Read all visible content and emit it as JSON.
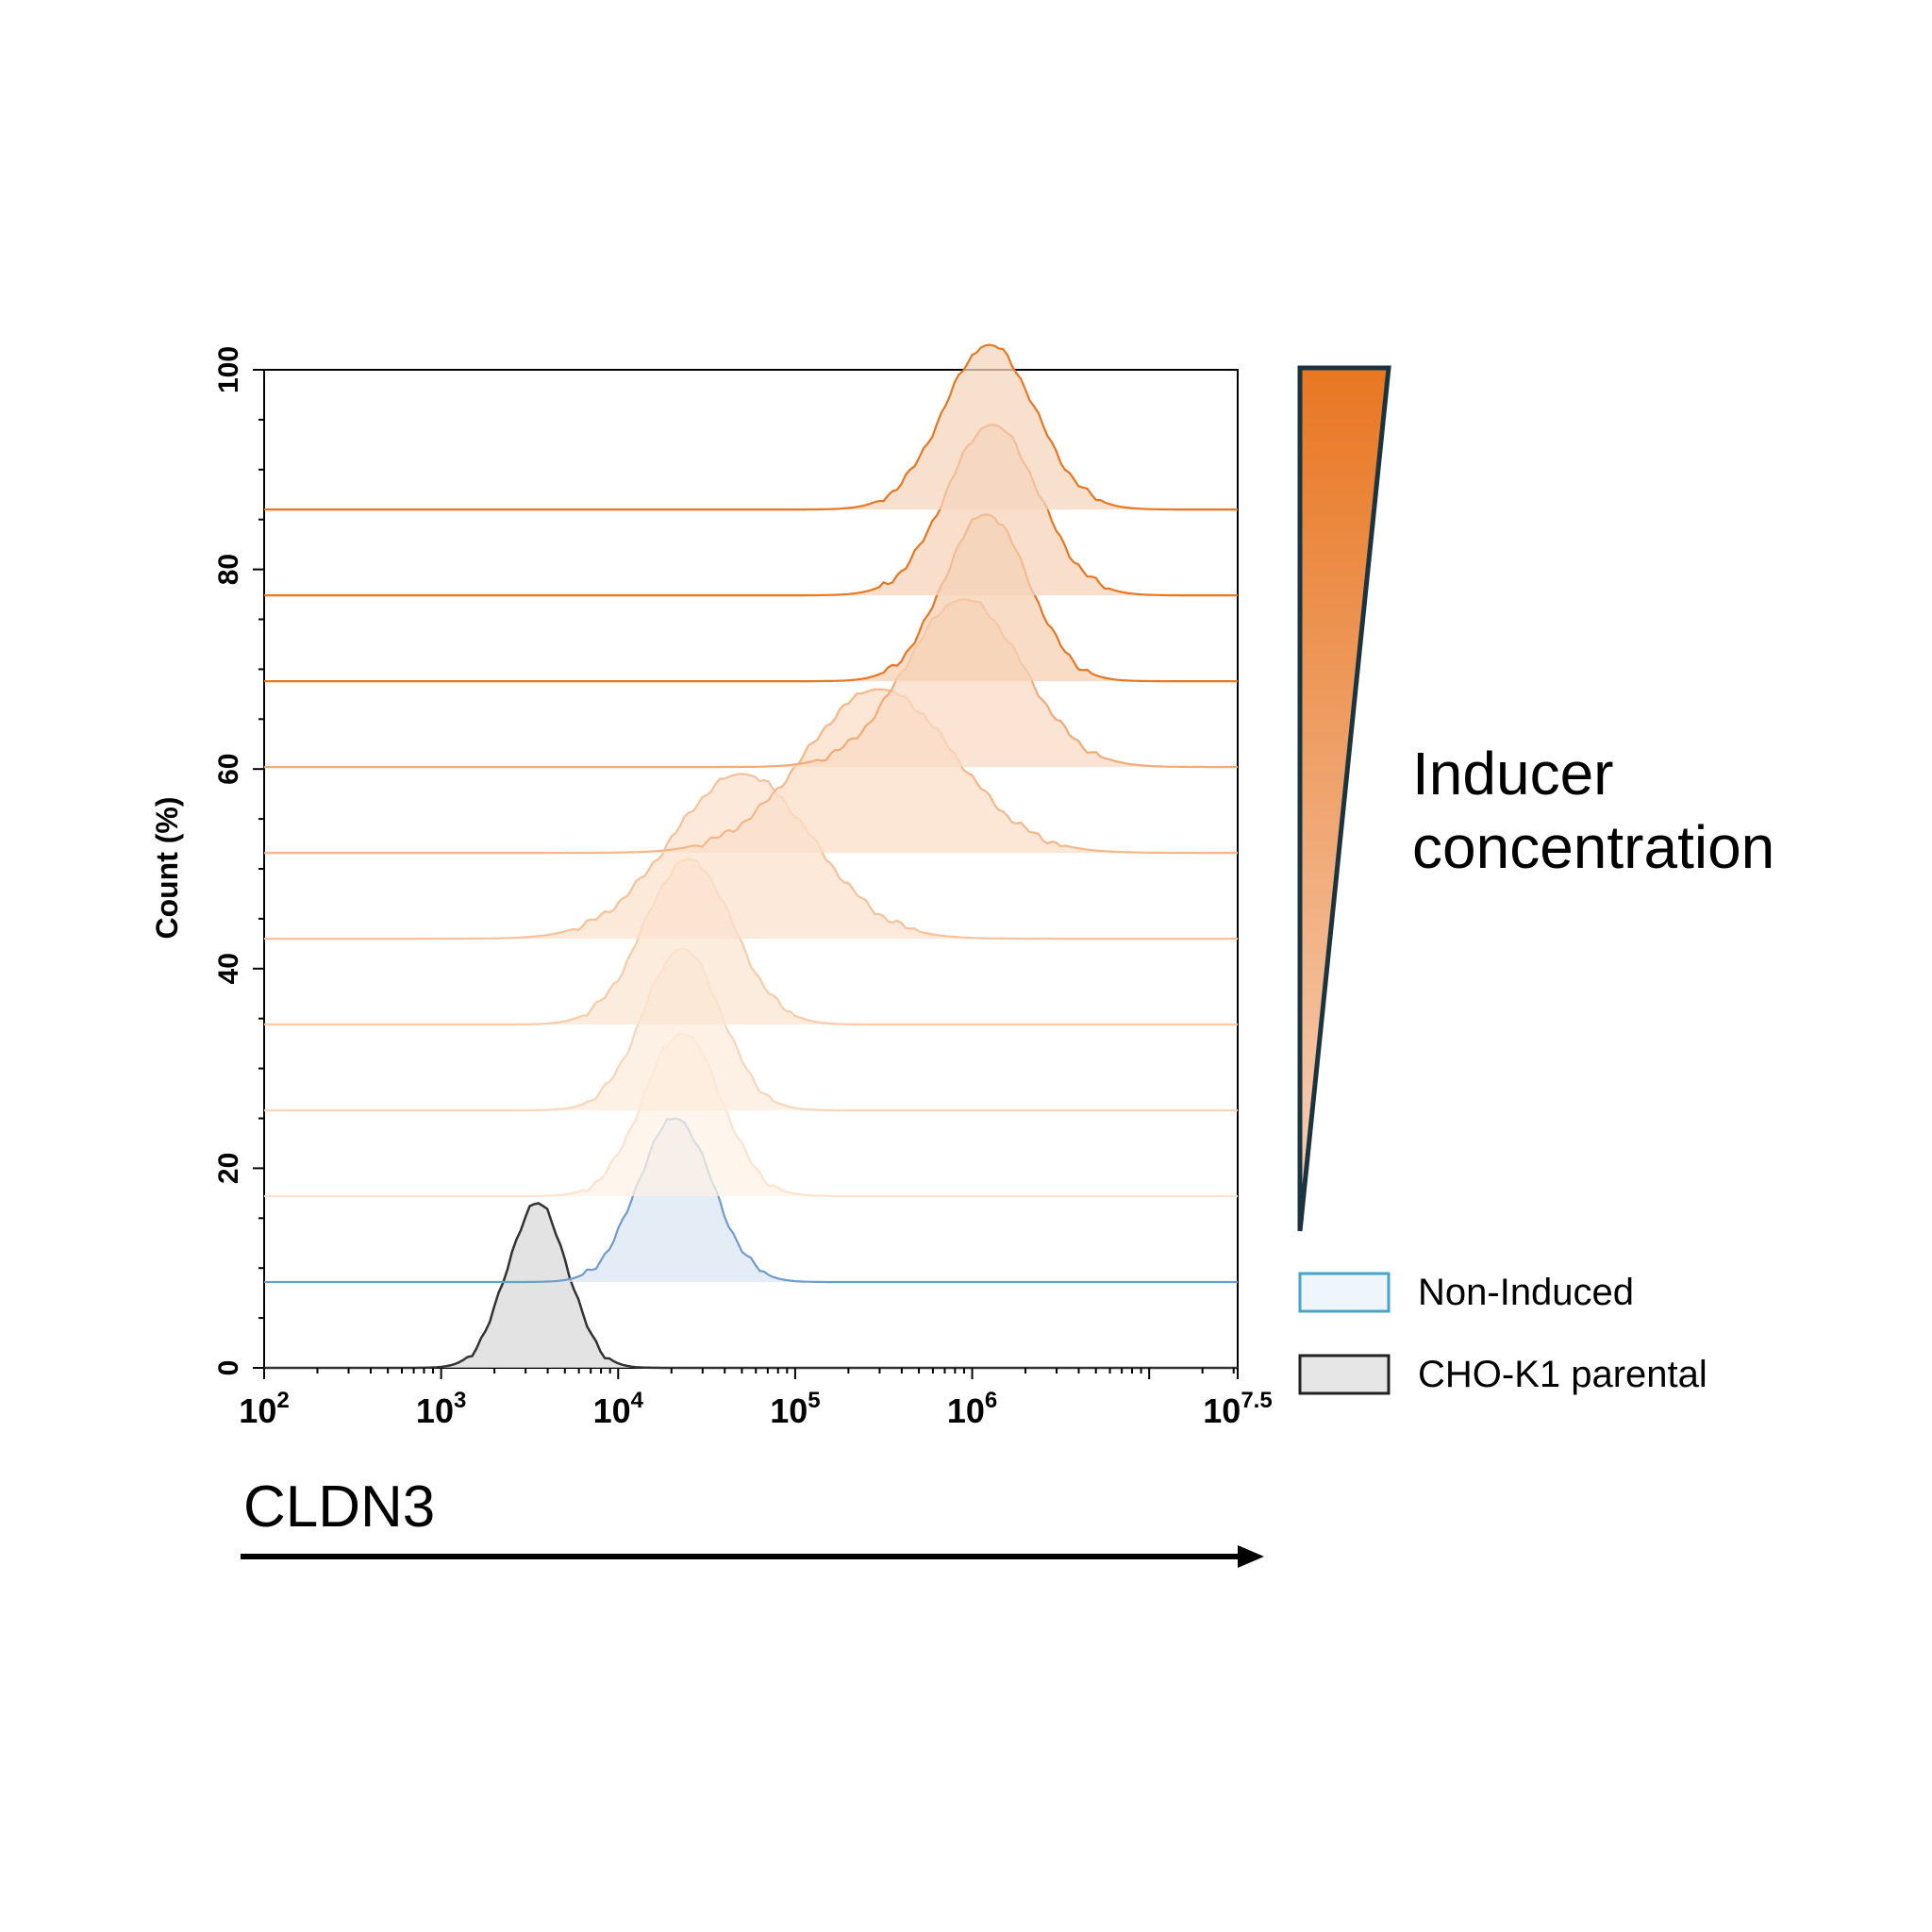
{
  "chart_data": {
    "type": "area",
    "subtype": "offset histogram overlay (flow cytometry)",
    "xlabel": "CLDN3",
    "ylabel": "Count (%)",
    "x_scale": "log10",
    "xlim": [
      100,
      31622777
    ],
    "ylim": [
      0,
      100
    ],
    "x_ticks": [
      {
        "base": "10",
        "exp": "2"
      },
      {
        "base": "10",
        "exp": "3"
      },
      {
        "base": "10",
        "exp": "4"
      },
      {
        "base": "10",
        "exp": "5"
      },
      {
        "base": "10",
        "exp": "6"
      },
      {
        "base": "10",
        "exp": "7.5"
      }
    ],
    "y_ticks": [
      "0",
      "20",
      "40",
      "60",
      "80",
      "100"
    ],
    "gradient_label": [
      "Inducer",
      "concentration"
    ],
    "gradient_colors": {
      "top": "#e87722",
      "bottom": "#f7d3bd",
      "outline": "#1b3540"
    },
    "legend": [
      {
        "label": "Non-Induced",
        "fill": "#eef6fb",
        "stroke": "#4aa3c8"
      },
      {
        "label": "CHO-K1 parental",
        "fill": "#e6e6e6",
        "stroke": "#222222"
      }
    ],
    "series": [
      {
        "baseline": 0.0,
        "peak_x": 3500,
        "peak_y": 16.5,
        "width": 0.17,
        "stroke": "#333333",
        "fill": "#d9d9d9"
      },
      {
        "baseline": 8.6,
        "peak_x": 21000,
        "peak_y": 25.0,
        "width": 0.21,
        "stroke": "#6f9ccc",
        "fill": "#dbe5f1"
      },
      {
        "baseline": 17.2,
        "peak_x": 23000,
        "peak_y": 33.5,
        "width": 0.22,
        "stroke": "#fbe3cf",
        "fill": "#fdf1e6"
      },
      {
        "baseline": 25.8,
        "peak_x": 23000,
        "peak_y": 42.0,
        "width": 0.22,
        "stroke": "#f9d6bb",
        "fill": "#fcebdc"
      },
      {
        "baseline": 34.4,
        "peak_x": 25000,
        "peak_y": 51.0,
        "width": 0.25,
        "stroke": "#f8cca9",
        "fill": "#fbe5d2"
      },
      {
        "baseline": 43.0,
        "peak_x": 50000,
        "peak_y": 59.5,
        "width": 0.4,
        "stroke": "#f6c29c",
        "fill": "#fbe2cd"
      },
      {
        "baseline": 51.6,
        "peak_x": 300000,
        "peak_y": 68.0,
        "width": 0.42,
        "stroke": "#f4b78a",
        "fill": "#fbdfc9"
      },
      {
        "baseline": 60.2,
        "peak_x": 900000,
        "peak_y": 77.0,
        "width": 0.33,
        "stroke": "#f2ab78",
        "fill": "#fadbc4"
      },
      {
        "baseline": 68.8,
        "peak_x": 1200000,
        "peak_y": 85.5,
        "width": 0.24,
        "stroke": "#e87722",
        "fill": "#f6d0b3"
      },
      {
        "baseline": 77.4,
        "peak_x": 1300000,
        "peak_y": 94.5,
        "width": 0.26,
        "stroke": "#e87722",
        "fill": "#f6d3b9"
      },
      {
        "baseline": 86.0,
        "peak_x": 1250000,
        "peak_y": 102.5,
        "width": 0.26,
        "stroke": "#e87722",
        "fill": "#f6d6bf"
      }
    ]
  }
}
